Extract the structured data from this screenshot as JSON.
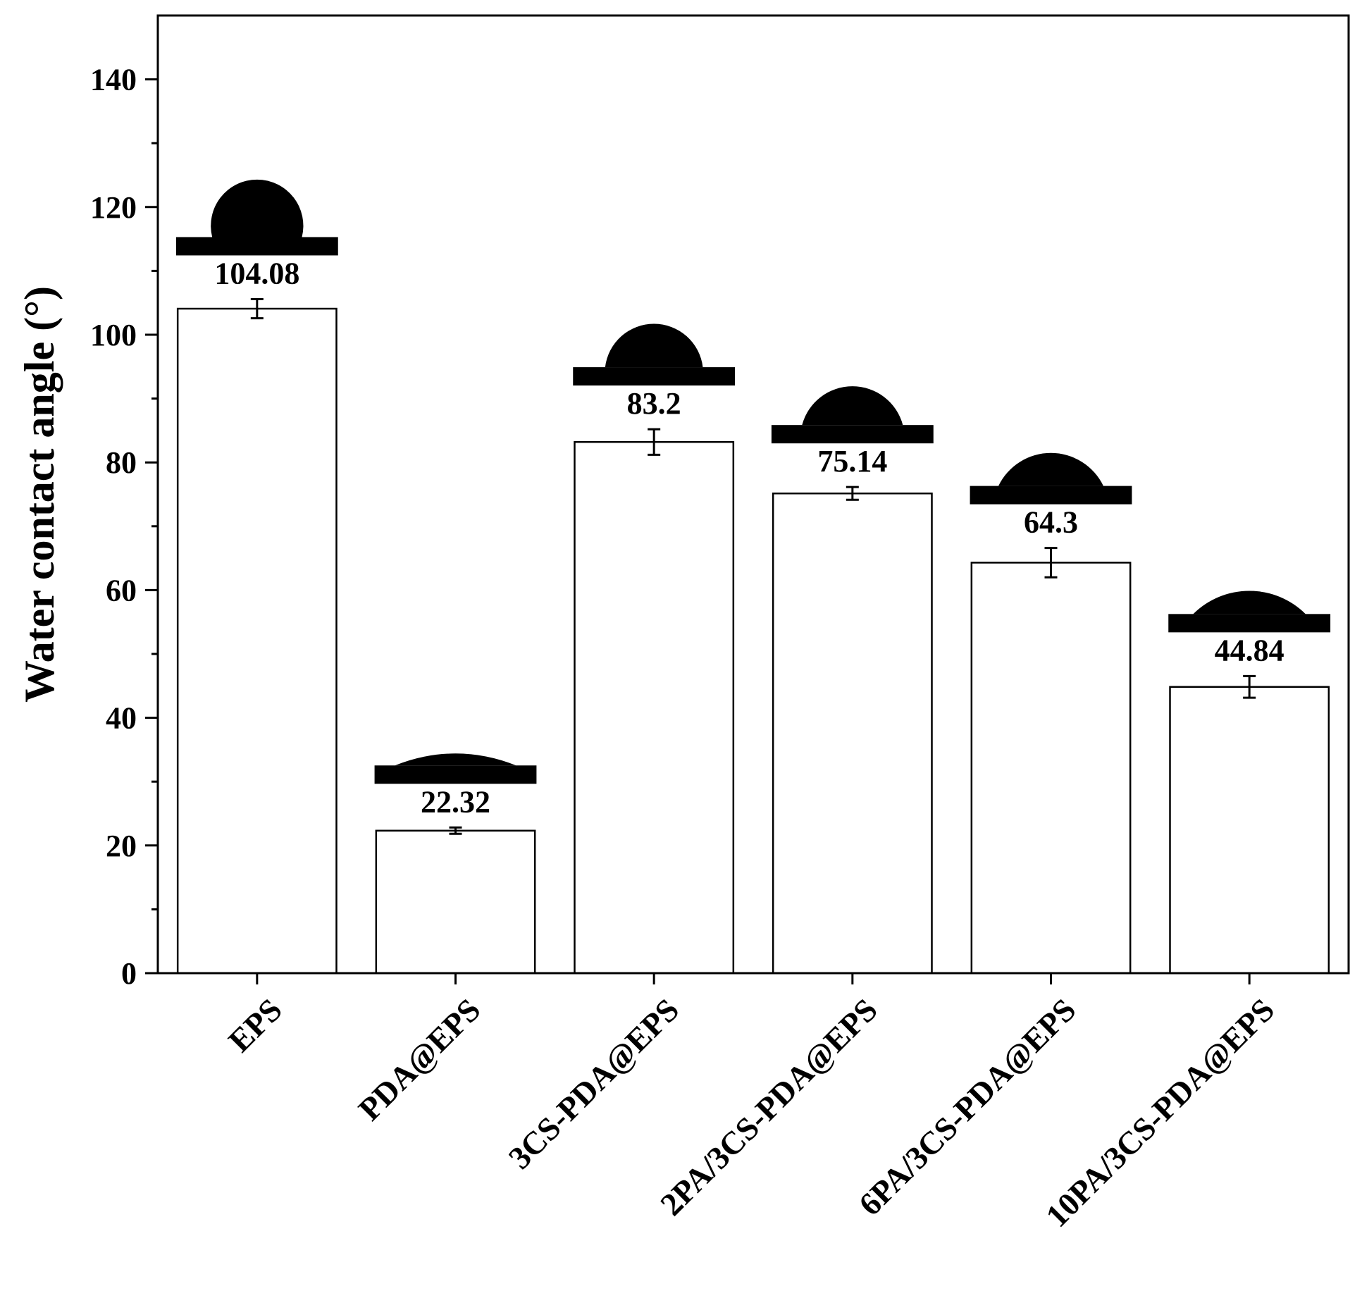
{
  "chart_data": {
    "type": "bar",
    "title": "",
    "xlabel": "",
    "ylabel": "Water contact angle (°)",
    "ylim": [
      0,
      150
    ],
    "yticks": [
      0,
      20,
      40,
      60,
      80,
      100,
      120,
      140
    ],
    "grid": false,
    "legend": "none",
    "categories": [
      "EPS",
      "PDA@EPS",
      "3CS-PDA@EPS",
      "2PA/3CS-PDA@EPS",
      "6PA/3CS-PDA@EPS",
      "10PA/3CS-PDA@EPS"
    ],
    "values": [
      104.08,
      22.32,
      83.2,
      75.14,
      64.3,
      44.84
    ],
    "value_labels": [
      "104.08",
      "22.32",
      "83.2",
      "75.14",
      "64.3",
      "44.84"
    ],
    "errors": [
      1.5,
      0.5,
      2.0,
      1.0,
      2.3,
      1.7
    ],
    "inset_images": "water droplet profile above each bar",
    "bar_fill": "#ffffff",
    "bar_edge": "#000000"
  }
}
